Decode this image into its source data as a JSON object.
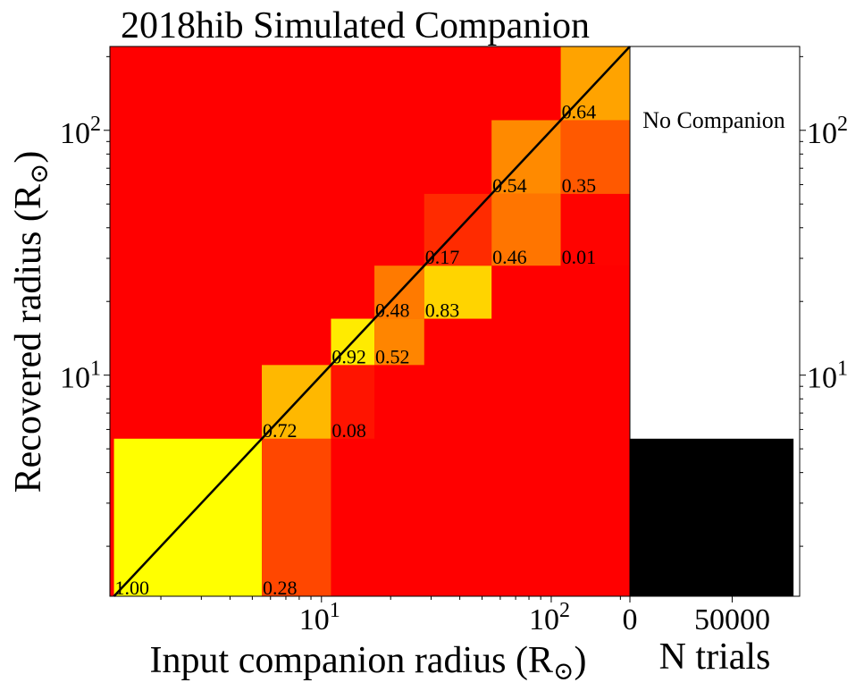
{
  "chart_data": [
    {
      "type": "heatmap",
      "title": "2018hib Simulated Companion",
      "xlabel": "Input companion radius (R⊙)",
      "ylabel": "Recovered radius (R⊙)",
      "x_scale": "log",
      "y_scale": "log",
      "xlim": [
        1.2,
        220
      ],
      "ylim": [
        1.25,
        220
      ],
      "x_tick_labels": [
        {
          "value": 10,
          "base": "10",
          "exp": "1"
        },
        {
          "value": 100,
          "base": "10",
          "exp": "2"
        }
      ],
      "y_tick_labels": [
        {
          "value": 10,
          "base": "10",
          "exp": "1"
        },
        {
          "value": 100,
          "base": "10",
          "exp": "2"
        }
      ],
      "colormap": "hot_r (red = 0, yellow = 1)",
      "colors": {
        "low": "#ff0000",
        "mid": "#ff8000",
        "high": "#ffff00",
        "diagonal": "#000000"
      },
      "bin_edges": [
        1.25,
        5.5,
        11,
        17,
        28,
        55,
        110,
        220
      ],
      "cells": [
        {
          "x_bin": 0,
          "y_bin": 0,
          "value": 1.0,
          "label": "1.00"
        },
        {
          "x_bin": 1,
          "y_bin": 0,
          "value": 0.28,
          "label": "0.28"
        },
        {
          "x_bin": 1,
          "y_bin": 1,
          "value": 0.72,
          "label": "0.72"
        },
        {
          "x_bin": 2,
          "y_bin": 1,
          "value": 0.08,
          "label": "0.08"
        },
        {
          "x_bin": 2,
          "y_bin": 2,
          "value": 0.92,
          "label": "0.92"
        },
        {
          "x_bin": 3,
          "y_bin": 2,
          "value": 0.52,
          "label": "0.52"
        },
        {
          "x_bin": 3,
          "y_bin": 3,
          "value": 0.48,
          "label": "0.48"
        },
        {
          "x_bin": 4,
          "y_bin": 3,
          "value": 0.83,
          "label": "0.83"
        },
        {
          "x_bin": 4,
          "y_bin": 4,
          "value": 0.17,
          "label": "0.17"
        },
        {
          "x_bin": 5,
          "y_bin": 4,
          "value": 0.46,
          "label": "0.46"
        },
        {
          "x_bin": 5,
          "y_bin": 5,
          "value": 0.54,
          "label": "0.54"
        },
        {
          "x_bin": 6,
          "y_bin": 4,
          "value": 0.01,
          "label": "0.01"
        },
        {
          "x_bin": 6,
          "y_bin": 5,
          "value": 0.35,
          "label": "0.35"
        },
        {
          "x_bin": 6,
          "y_bin": 6,
          "value": 0.64,
          "label": "0.64"
        }
      ],
      "diagonal_line": "y = x"
    },
    {
      "type": "bar",
      "orientation": "horizontal",
      "xlabel": "N trials",
      "x_tick_labels": [
        "0",
        "50000"
      ],
      "x_ticks": [
        0,
        50000
      ],
      "xlim": [
        0,
        83000
      ],
      "y_scale": "log",
      "ylim": [
        1.25,
        220
      ],
      "y_tick_labels": [
        {
          "value": 10,
          "base": "10",
          "exp": "1"
        },
        {
          "value": 100,
          "base": "10",
          "exp": "2"
        }
      ],
      "bars": [
        {
          "y_from": 1.25,
          "y_to": 5.5,
          "value": 80000,
          "color": "#000000"
        }
      ],
      "annotation": "No Companion"
    }
  ]
}
